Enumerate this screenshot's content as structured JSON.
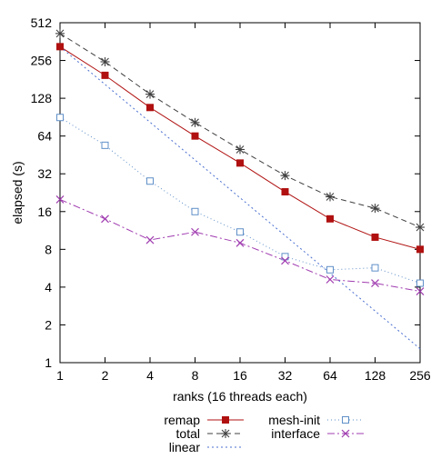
{
  "chart_data": {
    "type": "line",
    "title": "",
    "xlabel": "ranks (16 threads each)",
    "ylabel": "elapsed (s)",
    "xscale": "log2",
    "yscale": "log2",
    "x": [
      1,
      2,
      4,
      8,
      16,
      32,
      64,
      128,
      256
    ],
    "x_tick_labels": [
      "1",
      "2",
      "4",
      "8",
      "16",
      "32",
      "64",
      "128",
      "256"
    ],
    "y_tick_values": [
      1,
      2,
      4,
      8,
      16,
      32,
      64,
      128,
      256,
      512
    ],
    "y_tick_labels": [
      "1",
      "2",
      "4",
      "8",
      "16",
      "32",
      "64",
      "128",
      "256",
      "512"
    ],
    "xlim": [
      1,
      256
    ],
    "ylim": [
      1,
      512
    ],
    "grid": false,
    "legend_position": "bottom",
    "series": [
      {
        "name": "remap",
        "color": "#b01010",
        "dash": "",
        "marker": "filled-square",
        "values": [
          330,
          195,
          108,
          64,
          39,
          23,
          14,
          10,
          8
        ]
      },
      {
        "name": "total",
        "color": "#404040",
        "dash": "6,4",
        "marker": "asterisk",
        "values": [
          420,
          250,
          138,
          82,
          50,
          31,
          21,
          17,
          12
        ]
      },
      {
        "name": "linear",
        "color": "#4a6fd0",
        "dash": "2,3",
        "marker": "none",
        "values": [
          330,
          165,
          82.5,
          41.25,
          20.6,
          10.3,
          5.16,
          2.58,
          1.29
        ]
      },
      {
        "name": "mesh-init",
        "color": "#5f8fc8",
        "dash": "1,3",
        "marker": "open-square",
        "values": [
          90,
          54,
          28,
          16,
          11,
          7,
          5.5,
          5.7,
          4.3
        ]
      },
      {
        "name": "interface",
        "color": "#a03cb0",
        "dash": "8,3,2,3",
        "marker": "x-cross",
        "values": [
          20,
          14,
          9.5,
          11,
          9,
          6.5,
          4.6,
          4.3,
          3.7
        ]
      }
    ]
  }
}
